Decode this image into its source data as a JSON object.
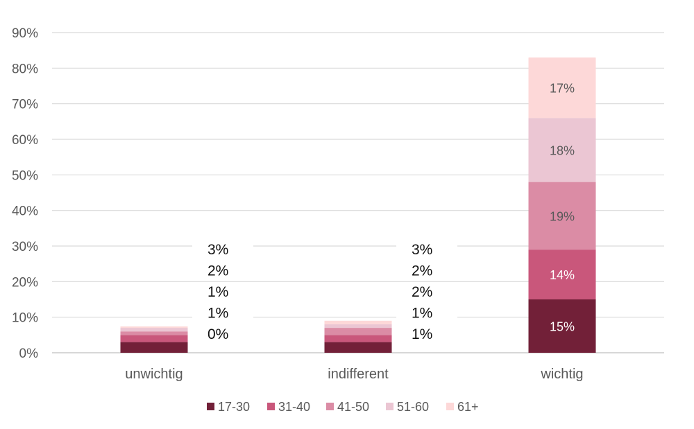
{
  "chart_data": {
    "type": "bar",
    "stacked": true,
    "categories": [
      "unwichtig",
      "indifferent",
      "wichtig"
    ],
    "series": [
      {
        "name": "17-30",
        "values": [
          3,
          3,
          15
        ],
        "color": "#722038"
      },
      {
        "name": "31-40",
        "values": [
          2,
          2,
          14
        ],
        "color": "#c9577b"
      },
      {
        "name": "41-50",
        "values": [
          1,
          2,
          19
        ],
        "color": "#db8ca5"
      },
      {
        "name": "51-60",
        "values": [
          1,
          1,
          18
        ],
        "color": "#ebc6d3"
      },
      {
        "name": "61+",
        "values": [
          0,
          1,
          17
        ],
        "color": "#fdd8d8"
      }
    ],
    "data_labels": {
      "unwichtig": [
        "0%",
        "1%",
        "1%",
        "2%",
        "3%"
      ],
      "indifferent": [
        "1%",
        "1%",
        "2%",
        "2%",
        "3%"
      ],
      "wichtig": [
        "15%",
        "14%",
        "19%",
        "18%",
        "17%"
      ]
    },
    "ylim": [
      0,
      90
    ],
    "yticks": [
      "0%",
      "10%",
      "20%",
      "30%",
      "40%",
      "50%",
      "60%",
      "70%",
      "80%",
      "90%"
    ],
    "grid": true,
    "legend_position": "bottom"
  }
}
